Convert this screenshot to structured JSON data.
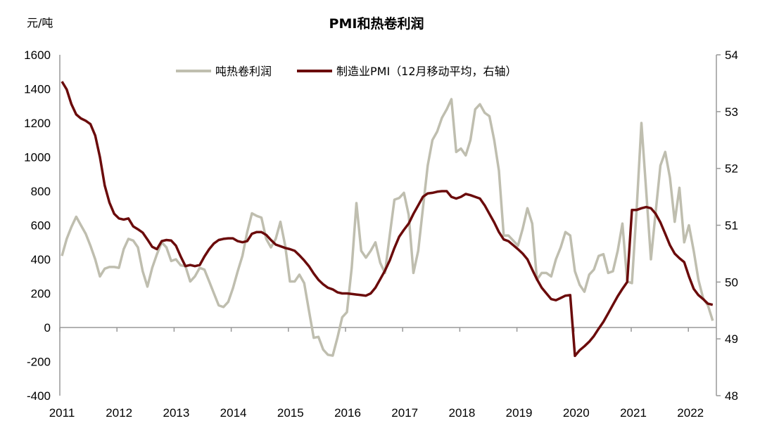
{
  "chart_data": {
    "type": "line",
    "title": "PMI和热卷利润",
    "ylabel_left": "元/吨",
    "x_start": "2011-01",
    "x_frequency": "monthly",
    "x_tick_labels": [
      "2011",
      "2012",
      "2013",
      "2014",
      "2015",
      "2016",
      "2017",
      "2018",
      "2019",
      "2020",
      "2021",
      "2022"
    ],
    "ylim_left": [
      -400,
      1600
    ],
    "yticks_left": [
      -400,
      -200,
      0,
      200,
      400,
      600,
      800,
      1000,
      1200,
      1400,
      1600
    ],
    "ylim_right": [
      48,
      54
    ],
    "yticks_right": [
      48,
      49,
      50,
      51,
      52,
      53,
      54
    ],
    "legend_position": "top-center",
    "grid": false,
    "series": [
      {
        "name": "吨热卷利润",
        "axis": "left",
        "color": "#bfbeaf",
        "values": [
          420,
          520,
          590,
          650,
          600,
          550,
          480,
          400,
          300,
          345,
          355,
          355,
          350,
          460,
          520,
          510,
          470,
          330,
          240,
          350,
          430,
          500,
          470,
          390,
          400,
          365,
          360,
          270,
          300,
          350,
          340,
          270,
          200,
          130,
          120,
          150,
          230,
          330,
          420,
          560,
          670,
          655,
          645,
          520,
          470,
          520,
          620,
          480,
          270,
          270,
          310,
          260,
          100,
          -60,
          -55,
          -130,
          -160,
          -165,
          -60,
          60,
          90,
          350,
          730,
          450,
          410,
          450,
          500,
          380,
          320,
          540,
          750,
          760,
          790,
          660,
          320,
          450,
          700,
          950,
          1100,
          1150,
          1230,
          1280,
          1340,
          1030,
          1050,
          1010,
          1100,
          1280,
          1310,
          1260,
          1240,
          1100,
          920,
          540,
          540,
          510,
          480,
          580,
          700,
          610,
          280,
          320,
          320,
          300,
          400,
          470,
          560,
          540,
          330,
          250,
          210,
          310,
          340,
          420,
          430,
          320,
          330,
          450,
          610,
          270,
          260,
          700,
          1200,
          800,
          400,
          680,
          950,
          1030,
          880,
          620,
          820,
          500,
          600,
          450,
          280,
          170,
          130,
          40
        ]
      },
      {
        "name": "制造业PMI（12月移动平均，右轴）",
        "axis": "right",
        "color": "#6b0b0b",
        "values": [
          53.53,
          53.39,
          53.13,
          52.95,
          52.88,
          52.84,
          52.78,
          52.58,
          52.2,
          51.7,
          51.4,
          51.2,
          51.12,
          51.1,
          51.12,
          50.98,
          50.93,
          50.87,
          50.75,
          50.62,
          50.58,
          50.72,
          50.74,
          50.73,
          50.64,
          50.45,
          50.28,
          50.3,
          50.28,
          50.3,
          50.45,
          50.58,
          50.68,
          50.74,
          50.76,
          50.77,
          50.77,
          50.72,
          50.7,
          50.72,
          50.85,
          50.88,
          50.88,
          50.83,
          50.74,
          50.66,
          50.63,
          50.6,
          50.58,
          50.55,
          50.47,
          50.38,
          50.28,
          50.15,
          50.04,
          49.96,
          49.9,
          49.87,
          49.82,
          49.8,
          49.8,
          49.79,
          49.78,
          49.77,
          49.76,
          49.8,
          49.9,
          50.05,
          50.2,
          50.38,
          50.6,
          50.8,
          50.92,
          51.03,
          51.2,
          51.35,
          51.5,
          51.56,
          51.57,
          51.59,
          51.6,
          51.6,
          51.5,
          51.47,
          51.5,
          51.55,
          51.53,
          51.5,
          51.47,
          51.35,
          51.2,
          51.05,
          50.88,
          50.75,
          50.72,
          50.65,
          50.58,
          50.5,
          50.4,
          50.22,
          50.05,
          49.9,
          49.8,
          49.7,
          49.68,
          49.72,
          49.76,
          49.77,
          48.7,
          48.8,
          48.87,
          48.95,
          49.05,
          49.18,
          49.3,
          49.45,
          49.6,
          49.75,
          49.88,
          50.0,
          51.27,
          51.27,
          51.3,
          51.32,
          51.3,
          51.2,
          51.05,
          50.85,
          50.65,
          50.5,
          50.42,
          50.35,
          50.1,
          49.88,
          49.77,
          49.7,
          49.62,
          49.6
        ]
      }
    ]
  }
}
